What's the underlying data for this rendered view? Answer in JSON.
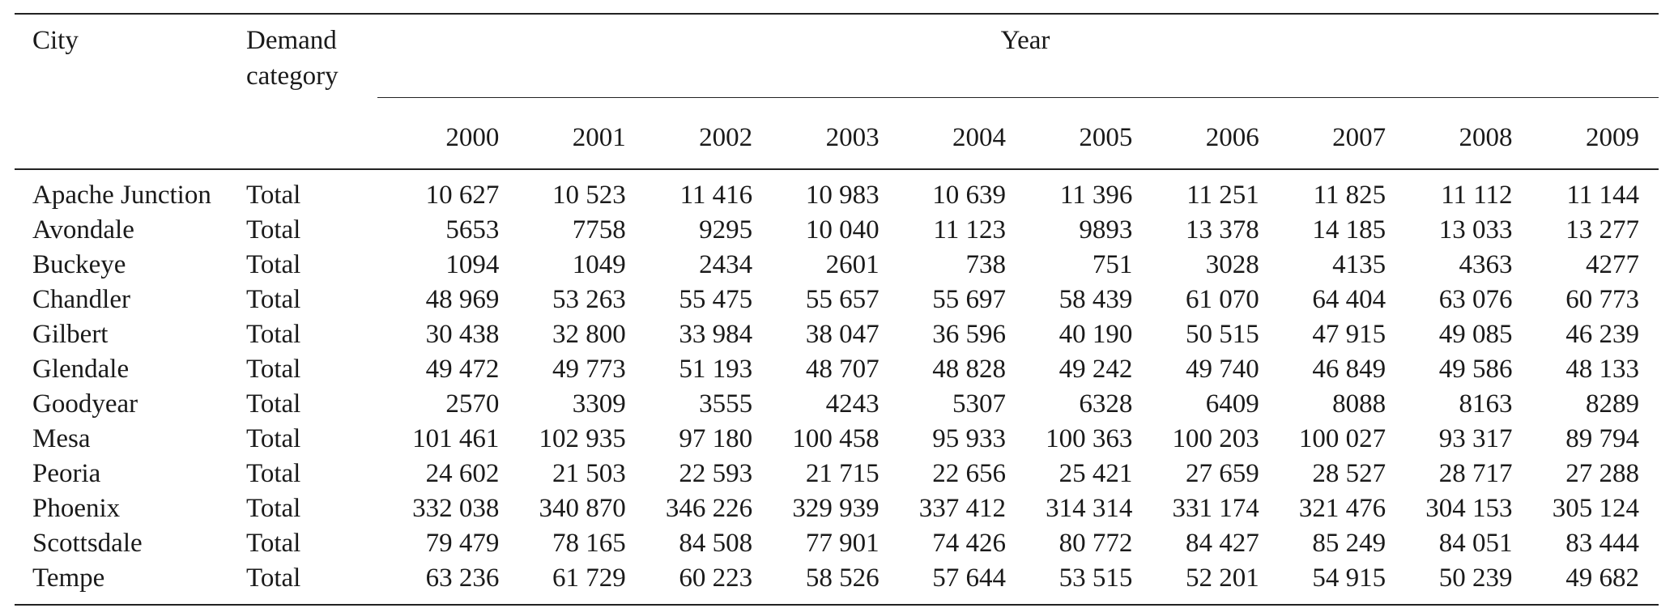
{
  "table": {
    "header_city": "City",
    "header_category": "Demand category",
    "header_year": "Year",
    "years": [
      "2000",
      "2001",
      "2002",
      "2003",
      "2004",
      "2005",
      "2006",
      "2007",
      "2008",
      "2009"
    ],
    "rows": [
      {
        "city": "Apache Junction",
        "category": "Total",
        "values": [
          "10 627",
          "10 523",
          "11 416",
          "10 983",
          "10 639",
          "11 396",
          "11 251",
          "11 825",
          "11 112",
          "11 144"
        ]
      },
      {
        "city": "Avondale",
        "category": "Total",
        "values": [
          "5653",
          "7758",
          "9295",
          "10 040",
          "11 123",
          "9893",
          "13 378",
          "14 185",
          "13 033",
          "13 277"
        ]
      },
      {
        "city": "Buckeye",
        "category": "Total",
        "values": [
          "1094",
          "1049",
          "2434",
          "2601",
          "738",
          "751",
          "3028",
          "4135",
          "4363",
          "4277"
        ]
      },
      {
        "city": "Chandler",
        "category": "Total",
        "values": [
          "48 969",
          "53 263",
          "55 475",
          "55 657",
          "55 697",
          "58 439",
          "61 070",
          "64 404",
          "63 076",
          "60 773"
        ]
      },
      {
        "city": "Gilbert",
        "category": "Total",
        "values": [
          "30 438",
          "32 800",
          "33 984",
          "38 047",
          "36 596",
          "40 190",
          "50 515",
          "47 915",
          "49 085",
          "46 239"
        ]
      },
      {
        "city": "Glendale",
        "category": "Total",
        "values": [
          "49 472",
          "49 773",
          "51 193",
          "48 707",
          "48 828",
          "49 242",
          "49 740",
          "46 849",
          "49 586",
          "48 133"
        ]
      },
      {
        "city": "Goodyear",
        "category": "Total",
        "values": [
          "2570",
          "3309",
          "3555",
          "4243",
          "5307",
          "6328",
          "6409",
          "8088",
          "8163",
          "8289"
        ]
      },
      {
        "city": "Mesa",
        "category": "Total",
        "values": [
          "101 461",
          "102 935",
          "97 180",
          "100 458",
          "95 933",
          "100 363",
          "100 203",
          "100 027",
          "93 317",
          "89 794"
        ]
      },
      {
        "city": "Peoria",
        "category": "Total",
        "values": [
          "24 602",
          "21 503",
          "22 593",
          "21 715",
          "22 656",
          "25 421",
          "27 659",
          "28 527",
          "28 717",
          "27 288"
        ]
      },
      {
        "city": "Phoenix",
        "category": "Total",
        "values": [
          "332 038",
          "340 870",
          "346 226",
          "329 939",
          "337 412",
          "314 314",
          "331 174",
          "321 476",
          "304 153",
          "305 124"
        ]
      },
      {
        "city": "Scottsdale",
        "category": "Total",
        "values": [
          "79 479",
          "78 165",
          "84 508",
          "77 901",
          "74 426",
          "80 772",
          "84 427",
          "85 249",
          "84 051",
          "83 444"
        ]
      },
      {
        "city": "Tempe",
        "category": "Total",
        "values": [
          "63 236",
          "61 729",
          "60 223",
          "58 526",
          "57 644",
          "53 515",
          "52 201",
          "54 915",
          "50 239",
          "49 682"
        ]
      }
    ]
  }
}
